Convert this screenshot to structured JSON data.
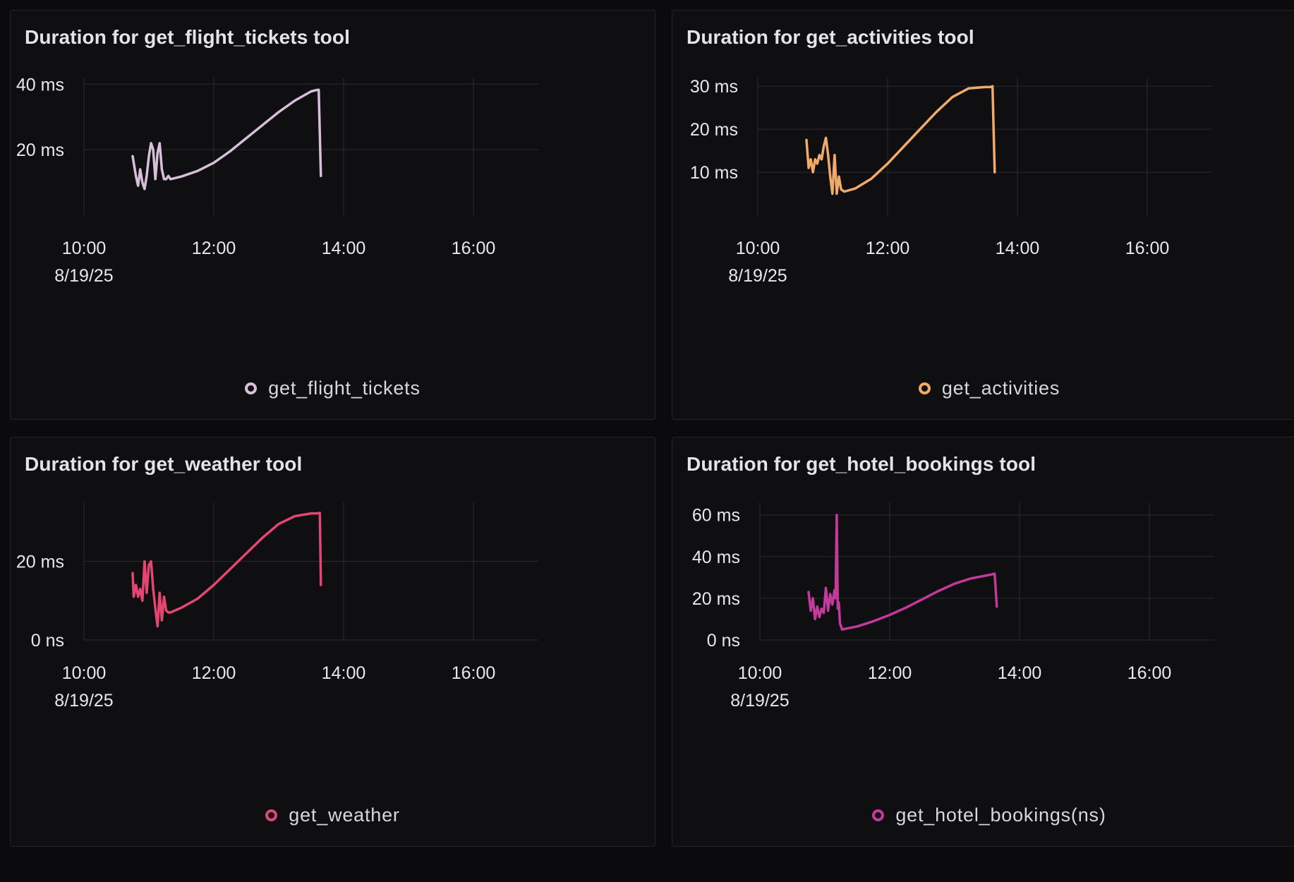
{
  "chart_data": [
    {
      "type": "line",
      "title": "Duration for get_flight_tickets tool",
      "date_label": "8/19/25",
      "xlim": [
        "10:00",
        "17:00"
      ],
      "xticks": [
        "10:00",
        "12:00",
        "14:00",
        "16:00"
      ],
      "ylim": [
        0,
        42
      ],
      "yticks": [
        {
          "value": 40,
          "label": "40 ms"
        },
        {
          "value": 20,
          "label": "20 ms"
        }
      ],
      "grid": true,
      "legend_position": "bottom-center",
      "series": [
        {
          "name": "get_flight_tickets",
          "color": "#d6bfd9",
          "x": [
            "10:45",
            "10:48",
            "10:50",
            "10:52",
            "10:54",
            "10:56",
            "10:58",
            "11:00",
            "11:02",
            "11:04",
            "11:06",
            "11:08",
            "11:10",
            "11:12",
            "11:14",
            "11:16",
            "11:18",
            "11:20",
            "11:30",
            "11:45",
            "12:00",
            "12:15",
            "12:30",
            "12:45",
            "13:00",
            "13:15",
            "13:30",
            "13:35",
            "13:37",
            "13:39"
          ],
          "values": [
            18,
            12,
            9,
            14,
            10,
            8,
            12,
            18,
            22,
            20,
            11,
            19,
            22,
            14,
            11,
            11,
            12,
            11,
            11.8,
            13.5,
            16,
            19.5,
            23.5,
            27.5,
            31.5,
            35,
            37.8,
            38.2,
            38.3,
            12
          ]
        }
      ]
    },
    {
      "type": "line",
      "title": "Duration for get_activities tool",
      "date_label": "8/19/25",
      "xlim": [
        "10:00",
        "17:00"
      ],
      "xticks": [
        "10:00",
        "12:00",
        "14:00",
        "16:00"
      ],
      "ylim": [
        0,
        32
      ],
      "yticks": [
        {
          "value": 30,
          "label": "30 ms"
        },
        {
          "value": 20,
          "label": "20 ms"
        },
        {
          "value": 10,
          "label": "10 ms"
        }
      ],
      "grid": true,
      "legend_position": "bottom-center",
      "series": [
        {
          "name": "get_activities",
          "color": "#f0aa6a",
          "x": [
            "10:45",
            "10:47",
            "10:49",
            "10:51",
            "10:53",
            "10:55",
            "10:57",
            "10:59",
            "11:01",
            "11:03",
            "11:05",
            "11:07",
            "11:09",
            "11:11",
            "11:13",
            "11:15",
            "11:17",
            "11:20",
            "11:30",
            "11:45",
            "12:00",
            "12:15",
            "12:30",
            "12:45",
            "13:00",
            "13:15",
            "13:30",
            "13:35",
            "13:37",
            "13:39"
          ],
          "values": [
            17.5,
            11,
            13,
            10,
            13,
            12,
            14,
            13,
            16,
            18,
            14,
            9,
            5,
            14,
            5,
            9,
            6,
            5.5,
            6.2,
            8.5,
            12,
            16,
            20,
            24,
            27.5,
            29.5,
            29.8,
            29.8,
            30,
            10
          ]
        }
      ]
    },
    {
      "type": "line",
      "title": "Duration for get_weather tool",
      "date_label": "8/19/25",
      "xlim": [
        "10:00",
        "17:00"
      ],
      "xticks": [
        "10:00",
        "12:00",
        "14:00",
        "16:00"
      ],
      "ylim": [
        0,
        35
      ],
      "yticks": [
        {
          "value": 20,
          "label": "20 ms"
        },
        {
          "value": 0,
          "label": "0 ns"
        }
      ],
      "grid": true,
      "legend_position": "bottom-center",
      "series": [
        {
          "name": "get_weather",
          "color": "#e54671",
          "x": [
            "10:45",
            "10:46",
            "10:48",
            "10:50",
            "10:52",
            "10:54",
            "10:56",
            "10:58",
            "11:00",
            "11:02",
            "11:04",
            "11:06",
            "11:08",
            "11:10",
            "11:12",
            "11:14",
            "11:16",
            "11:18",
            "11:20",
            "11:30",
            "11:45",
            "12:00",
            "12:15",
            "12:30",
            "12:45",
            "13:00",
            "13:15",
            "13:30",
            "13:35",
            "13:38",
            "13:39"
          ],
          "values": [
            17,
            11,
            14,
            11,
            13,
            10,
            20,
            12,
            19,
            20,
            13,
            8,
            3.5,
            12,
            5,
            11,
            7.5,
            7,
            7,
            8.2,
            10.5,
            14,
            18,
            22,
            26,
            29.5,
            31.5,
            32.2,
            32.2,
            32.3,
            14
          ]
        }
      ]
    },
    {
      "type": "line",
      "title": "Duration for get_hotel_bookings tool",
      "date_label": "8/19/25",
      "xlim": [
        "10:00",
        "17:00"
      ],
      "xticks": [
        "10:00",
        "12:00",
        "14:00",
        "16:00"
      ],
      "ylim": [
        0,
        66
      ],
      "yticks": [
        {
          "value": 60,
          "label": "60 ms"
        },
        {
          "value": 40,
          "label": "40 ms"
        },
        {
          "value": 20,
          "label": "20 ms"
        },
        {
          "value": 0,
          "label": "0 ns"
        }
      ],
      "grid": true,
      "legend_position": "bottom-center",
      "series": [
        {
          "name": "get_hotel_bookings(ns)",
          "color": "#c23a9c",
          "x": [
            "10:45",
            "10:47",
            "10:49",
            "10:51",
            "10:53",
            "10:55",
            "10:57",
            "10:59",
            "11:01",
            "11:03",
            "11:05",
            "11:07",
            "11:09",
            "11:10",
            "11:11",
            "11:12",
            "11:13",
            "11:14",
            "11:16",
            "11:20",
            "11:30",
            "11:45",
            "12:00",
            "12:15",
            "12:30",
            "12:45",
            "13:00",
            "13:15",
            "13:30",
            "13:35",
            "13:37",
            "13:39"
          ],
          "values": [
            23,
            14,
            20,
            10,
            16,
            11,
            15,
            13,
            25,
            14,
            22,
            17,
            24,
            20,
            60,
            15,
            18,
            8,
            5,
            5.5,
            6.5,
            9,
            12,
            15.5,
            19.5,
            23.5,
            27,
            29.5,
            31,
            31.5,
            31.8,
            16
          ]
        }
      ]
    }
  ]
}
